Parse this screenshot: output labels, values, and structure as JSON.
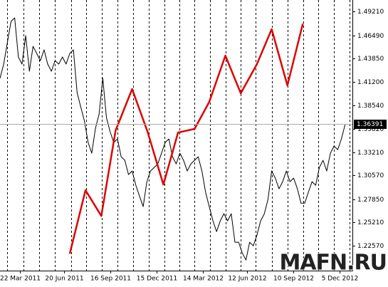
{
  "chart_data": {
    "type": "line",
    "xlim": [
      0,
      96
    ],
    "ylim": [
      1.1974,
      1.5051
    ],
    "yticks": [
      {
        "value": 1.4921,
        "label": "1.49210"
      },
      {
        "value": 1.4649,
        "label": "1.46490"
      },
      {
        "value": 1.4385,
        "label": "1.43850"
      },
      {
        "value": 1.412,
        "label": "1.41200"
      },
      {
        "value": 1.3854,
        "label": "1.38540"
      },
      {
        "value": 1.3582,
        "label": "1.35820"
      },
      {
        "value": 1.3321,
        "label": "1.33210"
      },
      {
        "value": 1.3057,
        "label": "1.30570"
      },
      {
        "value": 1.2785,
        "label": "1.27850"
      },
      {
        "value": 1.2521,
        "label": "1.25210"
      },
      {
        "value": 1.2257,
        "label": "1.22570"
      }
    ],
    "xticks": [
      {
        "value": 5.4,
        "label": "22 Mar 2011"
      },
      {
        "value": 17.5,
        "label": "20 Jun 2011"
      },
      {
        "value": 30.1,
        "label": "16 Sep 2011"
      },
      {
        "value": 42.7,
        "label": "15 Dec 2011"
      },
      {
        "value": 55.3,
        "label": "14 Mar 2012"
      },
      {
        "value": 67.3,
        "label": "12 Jun 2012"
      },
      {
        "value": 79.9,
        "label": "10 Sep 2012"
      },
      {
        "value": 92.5,
        "label": "5 Dec 2012"
      }
    ],
    "xgrid": [
      1.9,
      6.4,
      10.7,
      14.9,
      19.4,
      23.5,
      27.7,
      32,
      36.3,
      40.5,
      44.8,
      48.9,
      52.9,
      57.2,
      61.5,
      65.6,
      69.6,
      74.1,
      78.4,
      82.6,
      86.7,
      91,
      95.2
    ],
    "grid": true,
    "last_price": {
      "value": 1.36391,
      "label": "1.36391"
    },
    "series": [
      {
        "color": "#000000",
        "x": [
          0,
          1,
          2,
          3,
          4,
          5,
          6,
          7,
          8,
          9,
          10,
          11,
          12,
          13,
          14,
          15,
          16,
          17,
          18,
          19,
          20,
          21,
          22,
          23,
          24,
          25,
          26,
          27,
          28,
          29,
          30,
          31,
          32,
          33,
          34,
          35,
          36,
          37,
          38,
          39,
          40,
          41,
          42,
          43,
          44,
          45,
          46,
          47,
          48,
          49,
          50,
          51,
          52,
          53,
          54,
          55,
          56,
          57,
          58,
          59,
          60,
          61,
          62,
          63,
          64,
          65,
          66,
          67,
          68,
          69,
          70,
          71,
          72,
          73,
          74,
          75,
          76,
          77,
          78,
          79,
          80,
          81,
          82,
          83,
          84,
          85,
          86,
          87,
          88,
          89,
          90,
          91,
          92,
          93,
          94
        ],
        "values": [
          1.416,
          1.4322,
          1.4565,
          1.4808,
          1.4848,
          1.4403,
          1.4322,
          1.4646,
          1.4241,
          1.4524,
          1.4443,
          1.4362,
          1.4484,
          1.4322,
          1.4241,
          1.4362,
          1.4322,
          1.4403,
          1.4322,
          1.4443,
          1.4484,
          1.3998,
          1.3836,
          1.3674,
          1.3431,
          1.3309,
          1.3593,
          1.3755,
          1.416,
          1.3714,
          1.3552,
          1.3431,
          1.3471,
          1.3269,
          1.3228,
          1.3066,
          1.3107,
          1.2945,
          1.2823,
          1.2702,
          1.2985,
          1.3107,
          1.3147,
          1.3188,
          1.3309,
          1.3431,
          1.3471,
          1.3269,
          1.3188,
          1.3309,
          1.3228,
          1.3107,
          1.3188,
          1.3228,
          1.3269,
          1.3107,
          1.2864,
          1.2702,
          1.254,
          1.2418,
          1.254,
          1.2621,
          1.254,
          1.2621,
          1.2297,
          1.2297,
          1.2175,
          1.2094,
          1.2297,
          1.2256,
          1.2378,
          1.254,
          1.2621,
          1.2783,
          1.3107,
          1.3026,
          1.2904,
          1.2985,
          1.3107,
          1.2985,
          1.3026,
          1.2904,
          1.2742,
          1.2742,
          1.2864,
          1.2985,
          1.2945,
          1.3147,
          1.3228,
          1.3107,
          1.3309,
          1.339,
          1.335,
          1.3471,
          1.3633
        ]
      },
      {
        "color": "#e00000",
        "x": [
          19,
          23.3,
          27.6,
          31.5,
          36,
          40.2,
          44.5,
          48.5,
          53,
          57,
          61.4,
          65.6,
          70,
          74,
          78.3,
          82.5
        ],
        "values": [
          1.2167,
          1.2888,
          1.2596,
          1.3568,
          1.4038,
          1.3552,
          1.2953,
          1.3544,
          1.3585,
          1.3892,
          1.4419,
          1.399,
          1.4322,
          1.4719,
          1.4079,
          1.4783
        ]
      }
    ]
  },
  "watermark": "MAFN.RU"
}
